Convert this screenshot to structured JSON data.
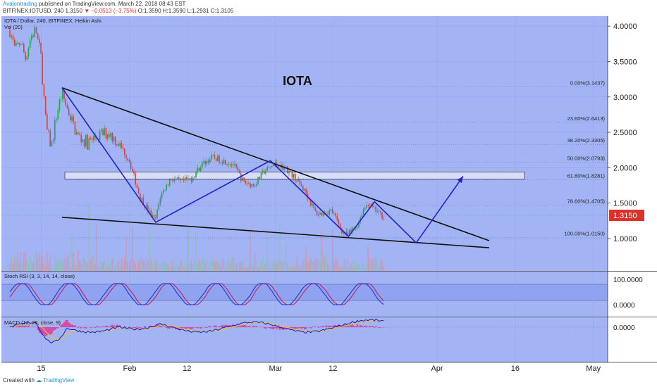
{
  "header": {
    "author": "Avalontrading",
    "published_text": "published on TradingView.com, March 22, 2018 08:43 EST",
    "symbol_line_prefix": "BITFINEX:IOTUSD, 240",
    "last": "1.3150",
    "change": "▼ −0.0513 (−3.75%)",
    "ohlc": "O:1.3590  H:1.3590  L:1.2931  C:1.3105"
  },
  "price_pane": {
    "legend": "IOTA / Dollar, 240, BITFINEX, Heikin Ashi",
    "volume_legend": "Vol (20)",
    "title": "IOTA",
    "last_price_label": "1.3150",
    "y_ticks": [
      "4.0000",
      "3.5000",
      "3.0000",
      "2.5000",
      "2.0000",
      "1.5000",
      "1.0000"
    ]
  },
  "stoch_pane": {
    "legend": "Stoch RSI (3, 3, 14, 14, close)",
    "y_ticks": [
      "100.0000",
      "0.0000"
    ]
  },
  "macd_pane": {
    "legend": "MACD (12, 26, close, 9)",
    "y_ticks": [
      "0.0000"
    ]
  },
  "x_axis": {
    "ticks": [
      "15",
      "Feb",
      "12",
      "Mar",
      "12",
      "Apr",
      "16",
      "May"
    ]
  },
  "footer": {
    "created_with": "Created with",
    "brand": "TradingView"
  },
  "colors": {
    "background": "#a3b4f5",
    "up_candle": "#26a255",
    "down_candle": "#d04545",
    "trend_line": "#101010",
    "pattern_line": "#2222cc",
    "stoch_k": "#2233dd",
    "stoch_d": "#c22060",
    "macd_line": "#1b1bbd",
    "signal_line": "#e8c030",
    "last_price_badge": "#e0302c"
  },
  "chart_data": {
    "type": "candlestick",
    "title": "IOTA",
    "xlabel": "",
    "ylabel": "",
    "x_ticks": [
      "15",
      "Feb",
      "12",
      "Mar",
      "12",
      "Apr",
      "16",
      "May"
    ],
    "ylim": [
      0.6,
      4.3
    ],
    "price_path": [
      [
        "Jan 09",
        3.95
      ],
      [
        "Jan 10",
        3.65
      ],
      [
        "Jan 11",
        3.8
      ],
      [
        "Jan 12",
        3.55
      ],
      [
        "Jan 13",
        3.85
      ],
      [
        "Jan 14",
        3.95
      ],
      [
        "Jan 15",
        3.55
      ],
      [
        "Jan 16",
        2.55
      ],
      [
        "Jan 17",
        2.3
      ],
      [
        "Jan 18",
        2.75
      ],
      [
        "Jan 19",
        3.05
      ],
      [
        "Jan 20",
        2.85
      ],
      [
        "Jan 21",
        2.65
      ],
      [
        "Jan 22",
        2.45
      ],
      [
        "Jan 24",
        2.35
      ],
      [
        "Jan 26",
        2.45
      ],
      [
        "Jan 28",
        2.5
      ],
      [
        "Jan 30",
        2.35
      ],
      [
        "Feb 01",
        2.1
      ],
      [
        "Feb 03",
        1.6
      ],
      [
        "Feb 05",
        1.35
      ],
      [
        "Feb 06",
        1.25
      ],
      [
        "Feb 07",
        1.6
      ],
      [
        "Feb 09",
        1.85
      ],
      [
        "Feb 11",
        1.8
      ],
      [
        "Feb 13",
        1.85
      ],
      [
        "Feb 15",
        2.05
      ],
      [
        "Feb 17",
        2.15
      ],
      [
        "Feb 19",
        2.1
      ],
      [
        "Feb 21",
        2.05
      ],
      [
        "Feb 23",
        1.8
      ],
      [
        "Feb 25",
        1.75
      ],
      [
        "Feb 27",
        1.95
      ],
      [
        "Mar 01",
        2.05
      ],
      [
        "Mar 03",
        2.0
      ],
      [
        "Mar 05",
        1.85
      ],
      [
        "Mar 07",
        1.65
      ],
      [
        "Mar 08",
        1.5
      ],
      [
        "Mar 09",
        1.35
      ],
      [
        "Mar 10",
        1.35
      ],
      [
        "Mar 12",
        1.4
      ],
      [
        "Mar 13",
        1.25
      ],
      [
        "Mar 14",
        1.1
      ],
      [
        "Mar 15",
        1.05
      ],
      [
        "Mar 16",
        1.12
      ],
      [
        "Mar 17",
        1.2
      ],
      [
        "Mar 18",
        1.4
      ],
      [
        "Mar 19",
        1.5
      ],
      [
        "Mar 20",
        1.42
      ],
      [
        "Mar 21",
        1.36
      ],
      [
        "Mar 22",
        1.3105
      ]
    ],
    "fibonacci_levels": [
      {
        "label": "0.00%(3.1437)",
        "value": 3.1437
      },
      {
        "label": "23.60%(2.6413)",
        "value": 2.6413
      },
      {
        "label": "38.20%(2.3305)",
        "value": 2.3305
      },
      {
        "label": "50.00%(2.0793)",
        "value": 2.0793
      },
      {
        "label": "61.80%(1.8281)",
        "value": 1.8281
      },
      {
        "label": "78.60%(1.4705)",
        "value": 1.4705
      },
      {
        "label": "100.00%(1.0150)",
        "value": 1.015
      }
    ],
    "resistance_zone": [
      1.84,
      1.94
    ],
    "trend_lines": [
      {
        "name": "upper",
        "points": [
          [
            "Jan 19",
            3.13
          ],
          [
            "Apr 11",
            0.97
          ]
        ]
      },
      {
        "name": "lower",
        "points": [
          [
            "Jan 19",
            1.3
          ],
          [
            "Apr 11",
            0.87
          ]
        ]
      }
    ],
    "pattern_path": [
      [
        "Jan 19",
        3.13
      ],
      [
        "Feb 06",
        1.23
      ],
      [
        "Feb 28",
        2.1
      ],
      [
        "Mar 15",
        1.03
      ],
      [
        "Mar 20",
        1.52
      ],
      [
        "Mar 28",
        0.94
      ],
      [
        "Apr 06",
        1.88
      ]
    ],
    "last_price": 1.315
  }
}
